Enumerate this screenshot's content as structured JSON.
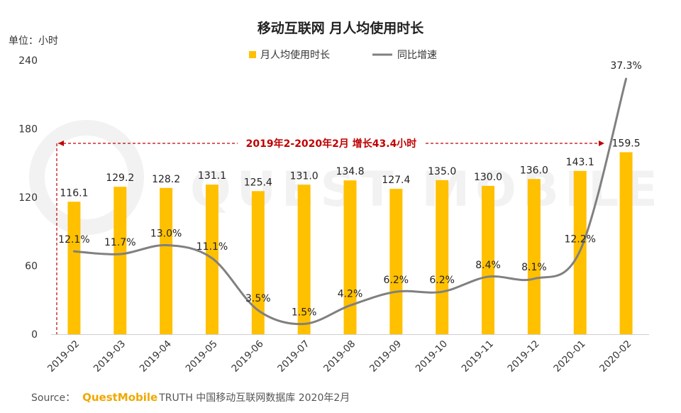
{
  "chart_data": {
    "type": "bar",
    "title": "移动互联网 月人均使用时长",
    "unit_label": "单位：小时",
    "categories": [
      "2019-02",
      "2019-03",
      "2019-04",
      "2019-05",
      "2019-06",
      "2019-07",
      "2019-08",
      "2019-09",
      "2019-10",
      "2019-11",
      "2019-12",
      "2020-01",
      "2020-02"
    ],
    "series": [
      {
        "name": "月人均使用时长",
        "type": "bar",
        "axis": "left",
        "color": "#FFC000",
        "values": [
          116.1,
          129.2,
          128.2,
          131.1,
          125.4,
          131.0,
          134.8,
          127.4,
          135.0,
          130.0,
          136.0,
          143.1,
          159.5
        ],
        "labels": [
          "116.1",
          "129.2",
          "128.2",
          "131.1",
          "125.4",
          "131.0",
          "134.8",
          "127.4",
          "135.0",
          "130.0",
          "136.0",
          "143.1",
          "159.5"
        ]
      },
      {
        "name": "同比增速",
        "type": "line",
        "axis": "right",
        "color": "#808080",
        "values": [
          12.1,
          11.7,
          13.0,
          11.1,
          3.5,
          1.5,
          4.2,
          6.2,
          6.2,
          8.4,
          8.1,
          12.2,
          37.3
        ],
        "labels": [
          "12.1%",
          "11.7%",
          "13.0%",
          "11.1%",
          "3.5%",
          "1.5%",
          "4.2%",
          "6.2%",
          "6.2%",
          "8.4%",
          "8.1%",
          "12.2%",
          "37.3%"
        ]
      }
    ],
    "y_left": {
      "min": 0,
      "max": 240,
      "ticks": [
        0,
        60,
        120,
        180,
        240
      ],
      "tick_labels": [
        "0",
        "60",
        "120",
        "180",
        "240"
      ]
    },
    "y_right": {
      "min": 0,
      "max": 40
    },
    "legend": {
      "position": "top-center"
    },
    "grid": false,
    "annotation": {
      "text": "2019年2-2020年2月  增长43.4小时",
      "from": "2019-02",
      "to": "2020-02",
      "color": "#C00000"
    },
    "source": {
      "prefix": "Source：",
      "brand": "QuestMobile",
      "text": "TRUTH 中国移动互联网数据库 2020年2月"
    },
    "watermark": "QUEST MOBILE"
  }
}
